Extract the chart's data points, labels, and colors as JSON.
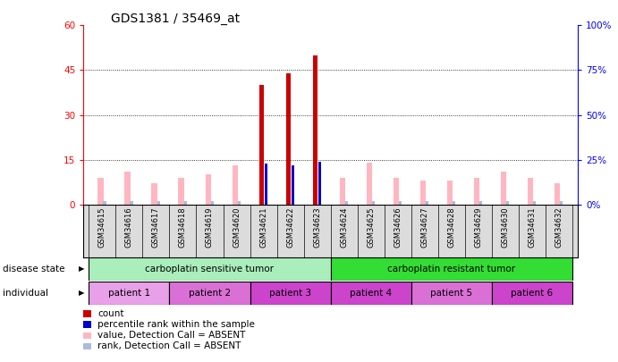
{
  "title": "GDS1381 / 35469_at",
  "samples": [
    "GSM34615",
    "GSM34616",
    "GSM34617",
    "GSM34618",
    "GSM34619",
    "GSM34620",
    "GSM34621",
    "GSM34622",
    "GSM34623",
    "GSM34624",
    "GSM34625",
    "GSM34626",
    "GSM34627",
    "GSM34628",
    "GSM34629",
    "GSM34630",
    "GSM34631",
    "GSM34632"
  ],
  "count_values": [
    0,
    0,
    0,
    0,
    0,
    0,
    40,
    44,
    50,
    0,
    0,
    0,
    0,
    0,
    0,
    0,
    0,
    0
  ],
  "percentile_values": [
    0,
    0,
    0,
    0,
    0,
    0,
    23,
    22,
    24,
    0,
    0,
    0,
    0,
    0,
    0,
    0,
    0,
    0
  ],
  "value_absent": [
    9,
    11,
    7,
    9,
    10,
    13,
    0,
    0,
    0,
    9,
    14,
    9,
    8,
    8,
    9,
    11,
    9,
    7
  ],
  "rank_absent": [
    2,
    2,
    2,
    2,
    2,
    2,
    0,
    0,
    0,
    2,
    2,
    2,
    2,
    2,
    2,
    2,
    2,
    2
  ],
  "ylim_left": [
    0,
    60
  ],
  "ylim_right": [
    0,
    100
  ],
  "yticks_left": [
    0,
    15,
    30,
    45,
    60
  ],
  "yticks_right": [
    0,
    25,
    50,
    75,
    100
  ],
  "ds_ranges": [
    [
      0,
      8
    ],
    [
      9,
      17
    ]
  ],
  "ds_labels": [
    "carboplatin sensitive tumor",
    "carboplatin resistant tumor"
  ],
  "ds_colors": [
    "#AAEEBB",
    "#33DD33"
  ],
  "ind_ranges": [
    [
      0,
      2
    ],
    [
      3,
      5
    ],
    [
      6,
      8
    ],
    [
      9,
      11
    ],
    [
      12,
      14
    ],
    [
      15,
      17
    ]
  ],
  "ind_labels": [
    "patient 1",
    "patient 2",
    "patient 3",
    "patient 4",
    "patient 5",
    "patient 6"
  ],
  "ind_colors": [
    "#E8A0E8",
    "#DA70D6",
    "#CC44CC",
    "#CC44CC",
    "#DA70D6",
    "#CC44CC"
  ],
  "count_color": "#CC0000",
  "percentile_color": "#0000CC",
  "value_absent_color": "#FFB6C1",
  "rank_absent_color": "#AABBDD",
  "bg_color": "#ffffff",
  "sample_bg": "#DCDCDC",
  "bar_width": 0.3,
  "legend_items": [
    [
      "#CC0000",
      "count"
    ],
    [
      "#0000CC",
      "percentile rank within the sample"
    ],
    [
      "#FFB6C1",
      "value, Detection Call = ABSENT"
    ],
    [
      "#AABBDD",
      "rank, Detection Call = ABSENT"
    ]
  ]
}
